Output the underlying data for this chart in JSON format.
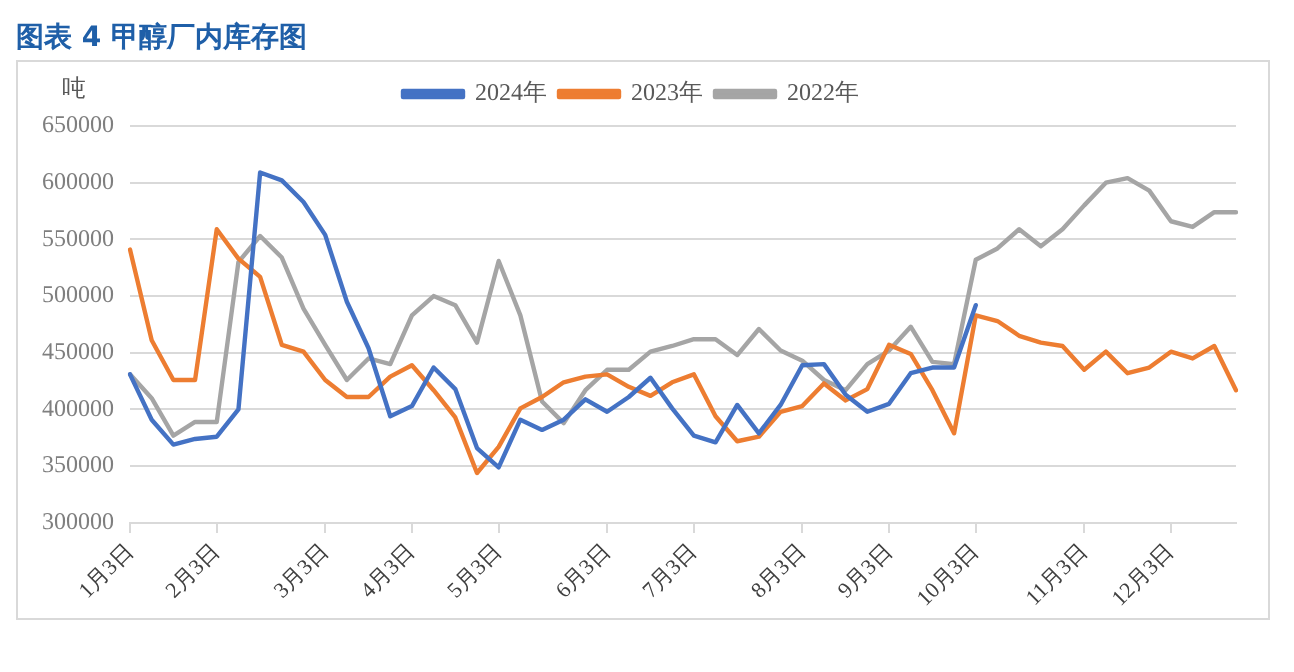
{
  "chart_data": {
    "type": "line",
    "title": "图表 4 甲醇厂内库存图",
    "ylabel": "吨",
    "categories": [
      "1月3日",
      null,
      null,
      null,
      "2月3日",
      null,
      null,
      null,
      null,
      "3月3日",
      null,
      null,
      null,
      "4月3日",
      null,
      null,
      null,
      "5月3日",
      null,
      null,
      null,
      null,
      "6月3日",
      null,
      null,
      null,
      "7月3日",
      null,
      null,
      null,
      null,
      "8月3日",
      null,
      null,
      null,
      "9月3日",
      null,
      null,
      null,
      "10月3日",
      null,
      null,
      null,
      null,
      "11月3日",
      null,
      null,
      null,
      "12月3日",
      null,
      null,
      null
    ],
    "series": [
      {
        "name": "2024年",
        "color": "#4472c4",
        "values": [
          431000,
          391000,
          369000,
          374000,
          376000,
          400000,
          609000,
          602000,
          583000,
          554000,
          495000,
          454000,
          394000,
          403000,
          437000,
          418000,
          366000,
          349000,
          391000,
          382000,
          391000,
          409000,
          398000,
          411000,
          428000,
          401000,
          377000,
          371000,
          404000,
          379000,
          404000,
          439000,
          440000,
          413000,
          398000,
          405000,
          432000,
          437000,
          437000,
          492000,
          null,
          null,
          null,
          null,
          null,
          null,
          null,
          null,
          null,
          null,
          null,
          null
        ]
      },
      {
        "name": "2023年",
        "color": "#ed7d31",
        "values": [
          541000,
          461000,
          426000,
          426000,
          559000,
          533000,
          517000,
          457000,
          451000,
          426000,
          411000,
          411000,
          429000,
          439000,
          417000,
          393000,
          344000,
          367000,
          401000,
          411000,
          424000,
          429000,
          431000,
          420000,
          412000,
          424000,
          431000,
          394000,
          372000,
          376000,
          398000,
          403000,
          423000,
          408000,
          418000,
          457000,
          449000,
          417000,
          379000,
          483000,
          478000,
          465000,
          459000,
          456000,
          435000,
          451000,
          432000,
          437000,
          451000,
          445000,
          456000,
          417000
        ]
      },
      {
        "name": "2022年",
        "color": "#a5a5a5",
        "values": [
          431000,
          410000,
          377000,
          389000,
          389000,
          530000,
          553000,
          534000,
          489000,
          457000,
          426000,
          445000,
          440000,
          483000,
          500000,
          492000,
          459000,
          531000,
          483000,
          407000,
          388000,
          417000,
          435000,
          435000,
          451000,
          456000,
          462000,
          462000,
          448000,
          471000,
          452000,
          443000,
          426000,
          417000,
          440000,
          452000,
          473000,
          442000,
          440000,
          532000,
          542000,
          559000,
          544000,
          559000,
          580000,
          600000,
          604000,
          593000,
          566000,
          561000,
          574000,
          574000
        ]
      }
    ],
    "ylim": [
      300000,
      650000
    ],
    "yticks": [
      300000,
      350000,
      400000,
      450000,
      500000,
      550000,
      600000,
      650000
    ],
    "grid": "y",
    "legend": "top",
    "marker": "none",
    "line_style": "solid"
  }
}
